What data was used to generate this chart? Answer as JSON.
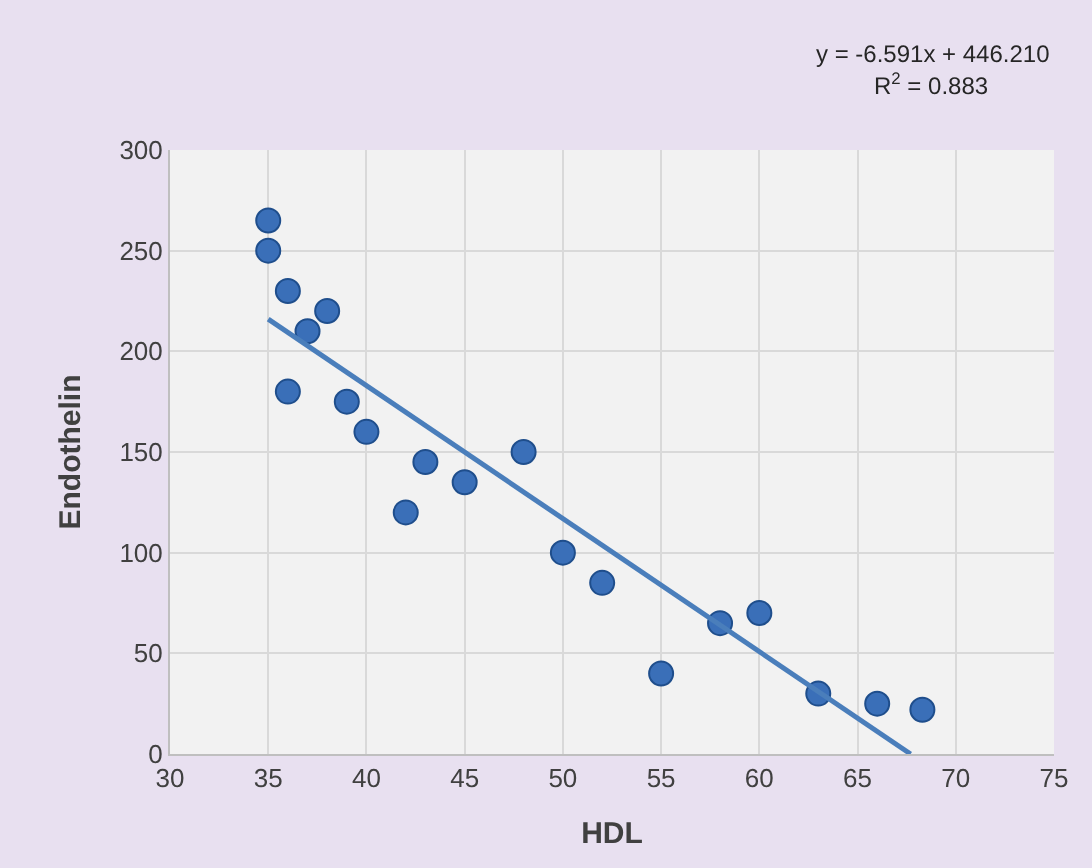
{
  "chart_data": {
    "type": "scatter",
    "xlabel": "HDL",
    "ylabel": "Endothelin",
    "xlim": [
      30,
      75
    ],
    "ylim": [
      0,
      300
    ],
    "xticks": [
      30,
      35,
      40,
      45,
      50,
      55,
      60,
      65,
      70,
      75
    ],
    "yticks": [
      0,
      50,
      100,
      150,
      200,
      250,
      300
    ],
    "grid": true,
    "marker": "circle",
    "annotations": [
      "y = -6.591x + 446.210",
      "R$^{2}$ = 0.883"
    ],
    "series": [
      {
        "color": "#3a6fb8",
        "x": [
          35,
          35,
          36,
          38,
          37,
          36,
          39,
          40,
          43,
          42,
          45,
          48,
          50,
          52,
          55,
          58,
          60,
          63,
          66,
          68.3
        ],
        "values": [
          265,
          250,
          230,
          220,
          210,
          180,
          175,
          160,
          145,
          120,
          135,
          150,
          100,
          85,
          40,
          65,
          70,
          30,
          25,
          22
        ]
      },
      {
        "type": "line",
        "marker": "none",
        "color": "#4a7ebb",
        "x": [
          35,
          67.7
        ],
        "values": [
          216,
          0
        ]
      }
    ]
  }
}
